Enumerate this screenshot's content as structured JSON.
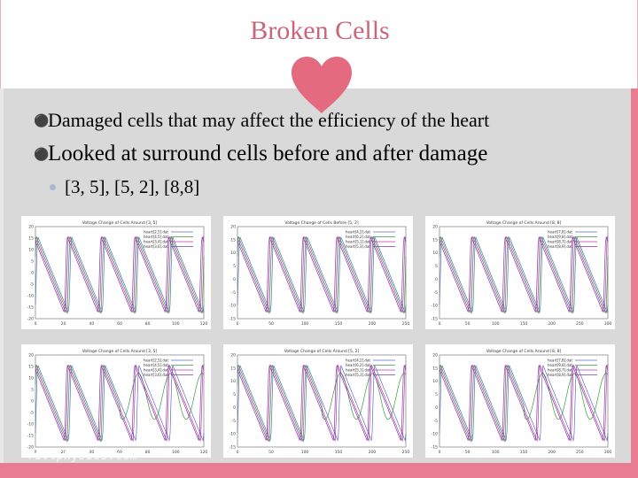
{
  "slide": {
    "title": "Broken Cells",
    "bullets": [
      "Damaged cells that may affect the efficiency of the heart",
      "Looked at surround cells before and after damage"
    ],
    "sub_bullets": [
      "[3, 5], [5, 2], [8,8]"
    ],
    "watermark": "fullphysics.com",
    "colors": {
      "accent": "#e87d91",
      "title": "#c9677a",
      "content_bg": "#d9d9d9"
    },
    "icons": {
      "heart": "heart-icon"
    }
  },
  "plots": [
    {
      "title": "Voltage Change of Cells Around [3, 5]",
      "legend": [
        "heart[2,5].dat",
        "heart[4,5].dat",
        "heart[3,4].dat",
        "heart[3,6].dat"
      ],
      "x_ticks": [
        "0",
        "20",
        "40",
        "60",
        "80",
        "100",
        "120"
      ],
      "y_ticks": [
        "20",
        "15",
        "10",
        "5",
        "0",
        "-5",
        "-10",
        "-15",
        "-20"
      ]
    },
    {
      "title": "Voltage Change of Cells Before [5, 2]",
      "legend": [
        "heart[4,2].dat",
        "heart[6,2].dat",
        "heart[5,1].dat",
        "heart[5,3].dat"
      ],
      "x_ticks": [
        "0",
        "50",
        "100",
        "150",
        "200",
        "250"
      ],
      "y_ticks": [
        "20",
        "15",
        "10",
        "5",
        "0",
        "-5",
        "-10",
        "-15"
      ]
    },
    {
      "title": "Voltage Change of Cells Around [8, 8]",
      "legend": [
        "heart[7,8].dat",
        "heart[9,8].dat",
        "heart[8,7].dat",
        "heart[8,9].dat"
      ],
      "x_ticks": [
        "0",
        "50",
        "100",
        "150",
        "200",
        "250",
        "300"
      ],
      "y_ticks": [
        "20",
        "15",
        "10",
        "5",
        "0",
        "-5",
        "-10",
        "-15"
      ]
    },
    {
      "title": "Voltage Change of Cells Around [3, 5]",
      "legend": [
        "heart[2,5].dat",
        "heart[4,5].dat",
        "heart[3,4].dat",
        "heart[3,6].dat"
      ],
      "x_ticks": [
        "0",
        "20",
        "40",
        "60",
        "80",
        "100",
        "120"
      ],
      "y_ticks": [
        "20",
        "15",
        "10",
        "5",
        "0",
        "-5",
        "-10",
        "-15",
        "-20"
      ]
    },
    {
      "title": "Voltage Change of Cells Around [5, 2]",
      "legend": [
        "heart[4,2].dat",
        "heart[6,2].dat",
        "heart[5,1].dat",
        "heart[5,3].dat"
      ],
      "x_ticks": [
        "0",
        "50",
        "100",
        "150",
        "200",
        "250"
      ],
      "y_ticks": [
        "20",
        "15",
        "10",
        "5",
        "0",
        "-5",
        "-10",
        "-15"
      ]
    },
    {
      "title": "Voltage Change of Cells Around [8, 8]",
      "legend": [
        "heart[7,8].dat",
        "heart[9,8].dat",
        "heart[8,7].dat",
        "heart[8,9].dat"
      ],
      "x_ticks": [
        "0",
        "50",
        "100",
        "150",
        "200",
        "250",
        "300"
      ],
      "y_ticks": [
        "20",
        "15",
        "10",
        "5",
        "0",
        "-5",
        "-10",
        "-15"
      ]
    }
  ]
}
